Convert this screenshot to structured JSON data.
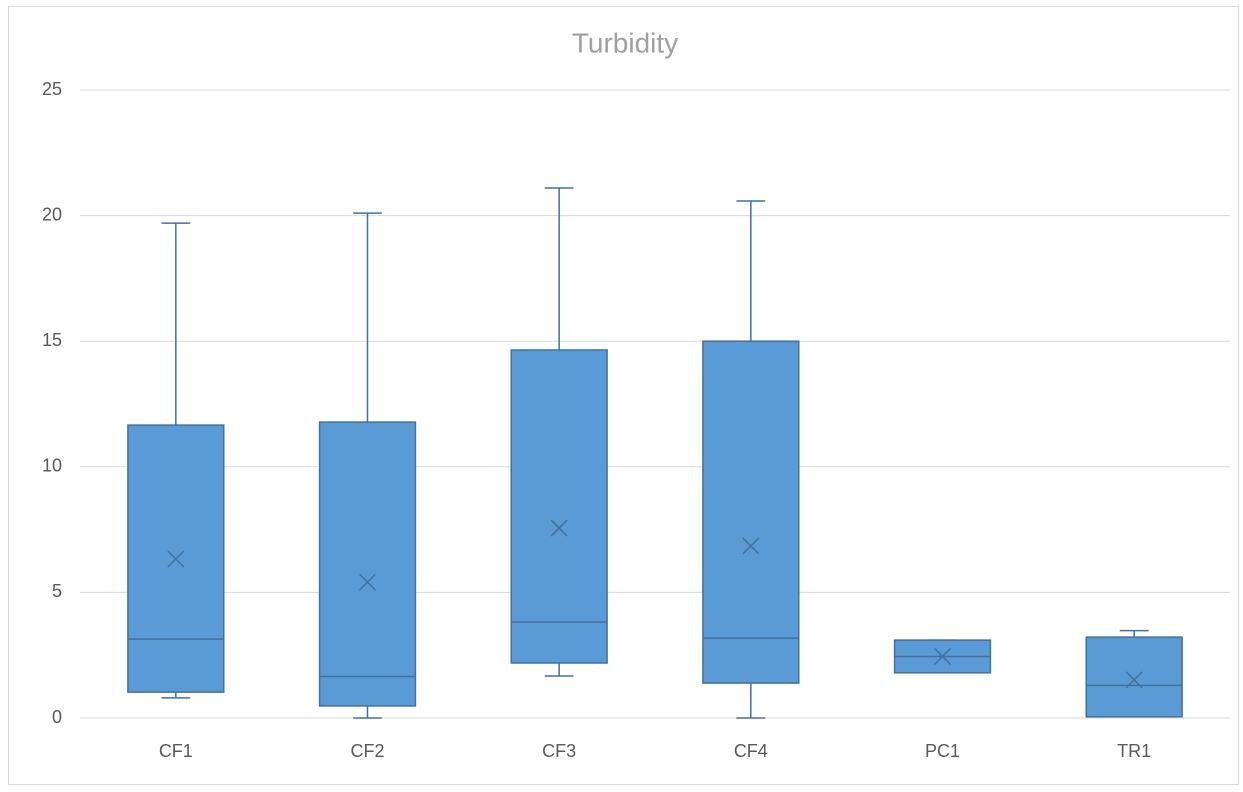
{
  "chart_data": {
    "type": "box",
    "title": "Turbidity",
    "categories": [
      "CF1",
      "CF2",
      "CF3",
      "CF4",
      "PC1",
      "TR1"
    ],
    "boxes": [
      {
        "min": 0.8,
        "q1": 1.03,
        "median": 3.14,
        "q3": 11.66,
        "max": 19.7,
        "mean": 6.33
      },
      {
        "min": 0,
        "q1": 0.48,
        "median": 1.65,
        "q3": 11.78,
        "max": 20.1,
        "mean": 5.41
      },
      {
        "min": 1.67,
        "q1": 2.19,
        "median": 3.82,
        "q3": 14.65,
        "max": 21.1,
        "mean": 7.56
      },
      {
        "min": 0,
        "q1": 1.39,
        "median": 3.18,
        "q3": 15.0,
        "max": 20.58,
        "mean": 6.85
      },
      {
        "min": 1.8,
        "q1": 1.8,
        "median": 2.45,
        "q3": 3.1,
        "max": 3.1,
        "mean": 2.45
      },
      {
        "min": 0.05,
        "q1": 0.05,
        "median": 1.3,
        "q3": 3.22,
        "max": 3.48,
        "mean": 1.52
      }
    ],
    "color": "#5b9bd5",
    "edge_color": "#41719c",
    "ylim": [
      0,
      25
    ],
    "yticks": [
      0,
      5,
      10,
      15,
      20,
      25
    ],
    "grid": true
  }
}
